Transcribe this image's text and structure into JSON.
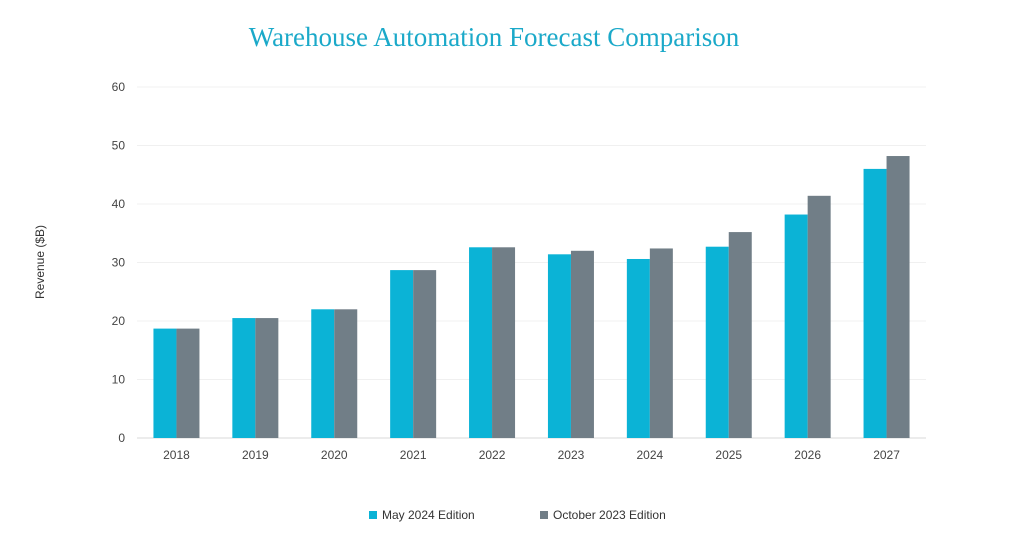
{
  "chart_data": {
    "type": "bar",
    "title": "Warehouse Automation Forecast Comparison",
    "xlabel": "",
    "ylabel": "Revenue ($B)",
    "ylim": [
      0,
      60
    ],
    "yticks": [
      0,
      10,
      20,
      30,
      40,
      50,
      60
    ],
    "grid": true,
    "legend_position": "bottom",
    "categories": [
      "2018",
      "2019",
      "2020",
      "2021",
      "2022",
      "2023",
      "2024",
      "2025",
      "2026",
      "2027"
    ],
    "series": [
      {
        "name": "May 2024 Edition",
        "color": "#0bb3d6",
        "values": [
          18.7,
          20.5,
          22.0,
          28.7,
          32.6,
          31.4,
          30.6,
          32.7,
          38.2,
          46.0
        ]
      },
      {
        "name": "October 2023 Edition",
        "color": "#717e87",
        "values": [
          18.7,
          20.5,
          22.0,
          28.7,
          32.6,
          32.0,
          32.4,
          35.2,
          41.4,
          48.2
        ]
      }
    ]
  }
}
